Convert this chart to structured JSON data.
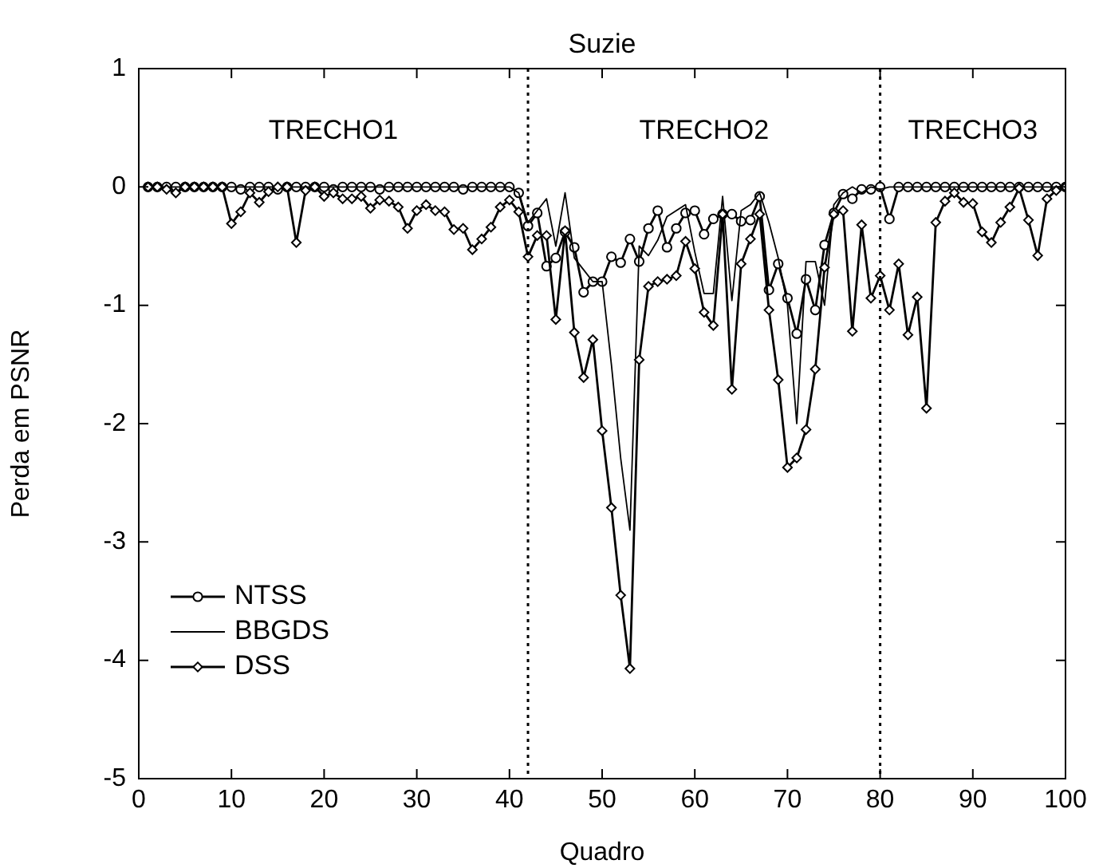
{
  "chart_data": {
    "type": "line",
    "title": "Suzie",
    "xlabel": "Quadro",
    "ylabel": "Perda em PSNR",
    "x": [
      1,
      2,
      3,
      4,
      5,
      6,
      7,
      8,
      9,
      10,
      11,
      12,
      13,
      14,
      15,
      16,
      17,
      18,
      19,
      20,
      21,
      22,
      23,
      24,
      25,
      26,
      27,
      28,
      29,
      30,
      31,
      32,
      33,
      34,
      35,
      36,
      37,
      38,
      39,
      40,
      41,
      42,
      43,
      44,
      45,
      46,
      47,
      48,
      49,
      50,
      51,
      52,
      53,
      54,
      55,
      56,
      57,
      58,
      59,
      60,
      61,
      62,
      63,
      64,
      65,
      66,
      67,
      68,
      69,
      70,
      71,
      72,
      73,
      74,
      75,
      76,
      77,
      78,
      79,
      80,
      81,
      82,
      83,
      84,
      85,
      86,
      87,
      88,
      89,
      90,
      91,
      92,
      93,
      94,
      95,
      96,
      97,
      98,
      99,
      100
    ],
    "series": [
      {
        "name": "NTSS",
        "color": "#000000",
        "marker": "circle",
        "values": [
          0,
          0,
          0,
          0,
          0,
          0,
          0,
          0,
          0,
          0,
          -0.02,
          0,
          0,
          0,
          -0.02,
          0,
          0,
          0,
          0,
          0,
          -0.02,
          0,
          0,
          0,
          0,
          -0.02,
          0,
          0,
          0,
          0,
          0,
          0,
          0,
          0,
          -0.02,
          0,
          0,
          0,
          0,
          0,
          -0.05,
          -0.33,
          -0.22,
          -0.67,
          -0.6,
          -0.38,
          -0.51,
          -0.89,
          -0.8,
          -0.8,
          -0.59,
          -0.64,
          -0.44,
          -0.63,
          -0.35,
          -0.2,
          -0.51,
          -0.35,
          -0.22,
          -0.2,
          -0.4,
          -0.27,
          -0.23,
          -0.23,
          -0.29,
          -0.28,
          -0.08,
          -0.87,
          -0.65,
          -0.94,
          -1.24,
          -0.78,
          -1.04,
          -0.49,
          -0.22,
          -0.06,
          -0.1,
          -0.02,
          -0.02,
          0,
          -0.27,
          0,
          0,
          0,
          0,
          0,
          0,
          0,
          0,
          0,
          0,
          0,
          0,
          0,
          0,
          0,
          0,
          0,
          0,
          0
        ]
      },
      {
        "name": "BBGDS",
        "color": "#000000",
        "marker": "none",
        "values": [
          0,
          0,
          0,
          0,
          0,
          0,
          0,
          0,
          0,
          0,
          0,
          0,
          0,
          0,
          0,
          0,
          0,
          0,
          0,
          0,
          0,
          0,
          0,
          0,
          0,
          0,
          0,
          0,
          0,
          0,
          0,
          0,
          0,
          0,
          0,
          0,
          0,
          0,
          0,
          0,
          -0.05,
          -0.3,
          -0.2,
          -0.1,
          -0.5,
          -0.05,
          -0.6,
          -0.7,
          -0.8,
          -0.8,
          -1.5,
          -2.29,
          -2.9,
          -0.5,
          -0.58,
          -0.45,
          -0.25,
          -0.2,
          -0.15,
          -0.55,
          -0.9,
          -0.9,
          -0.08,
          -0.96,
          -0.2,
          -0.15,
          -0.05,
          -0.3,
          -0.6,
          -1.0,
          -2.0,
          -0.63,
          -0.63,
          -1.0,
          -0.15,
          -0.05,
          0,
          -0.05,
          0,
          -0.02,
          0,
          0,
          0,
          0,
          0,
          0,
          0,
          0,
          0,
          0,
          0,
          0,
          0,
          0,
          0,
          0,
          0,
          0,
          0,
          0
        ]
      },
      {
        "name": "DSS",
        "color": "#000000",
        "marker": "diamond",
        "values": [
          0,
          0,
          -0.02,
          -0.05,
          0,
          0,
          0,
          0,
          0,
          -0.31,
          -0.21,
          -0.05,
          -0.13,
          -0.04,
          0,
          0,
          -0.47,
          -0.03,
          0,
          -0.08,
          -0.05,
          -0.1,
          -0.1,
          -0.08,
          -0.18,
          -0.11,
          -0.12,
          -0.17,
          -0.35,
          -0.2,
          -0.15,
          -0.2,
          -0.21,
          -0.36,
          -0.35,
          -0.53,
          -0.44,
          -0.34,
          -0.17,
          -0.11,
          -0.21,
          -0.59,
          -0.41,
          -0.41,
          -1.12,
          -0.37,
          -1.23,
          -1.61,
          -1.29,
          -2.06,
          -2.71,
          -3.45,
          -4.07,
          -1.46,
          -0.84,
          -0.8,
          -0.78,
          -0.75,
          -0.46,
          -0.69,
          -1.06,
          -1.17,
          -0.23,
          -1.71,
          -0.65,
          -0.44,
          -0.23,
          -1.04,
          -1.63,
          -2.37,
          -2.29,
          -2.05,
          -1.54,
          -0.68,
          -0.23,
          -0.2,
          -1.22,
          -0.32,
          -0.94,
          -0.75,
          -1.04,
          -0.65,
          -1.25,
          -0.93,
          -1.87,
          -0.3,
          -0.12,
          -0.05,
          -0.13,
          -0.14,
          -0.38,
          -0.47,
          -0.3,
          -0.17,
          -0.01,
          -0.28,
          -0.58,
          -0.1,
          -0.03,
          0
        ]
      }
    ],
    "xlim": [
      0,
      100
    ],
    "xticks": [
      0,
      10,
      20,
      30,
      40,
      50,
      60,
      70,
      80,
      90,
      100
    ],
    "ylim": [
      -5,
      1
    ],
    "yticks": [
      -5,
      -4,
      -3,
      -2,
      -1,
      0,
      1
    ],
    "ref_lines": [
      {
        "axis": "x",
        "value": 42,
        "line_style": "dotted"
      },
      {
        "axis": "x",
        "value": 80,
        "line_style": "dotted"
      }
    ],
    "annotations": [
      "TRECHO1",
      "TRECHO2",
      "TRECHO3"
    ],
    "legend": "bottom left",
    "grid": false
  }
}
